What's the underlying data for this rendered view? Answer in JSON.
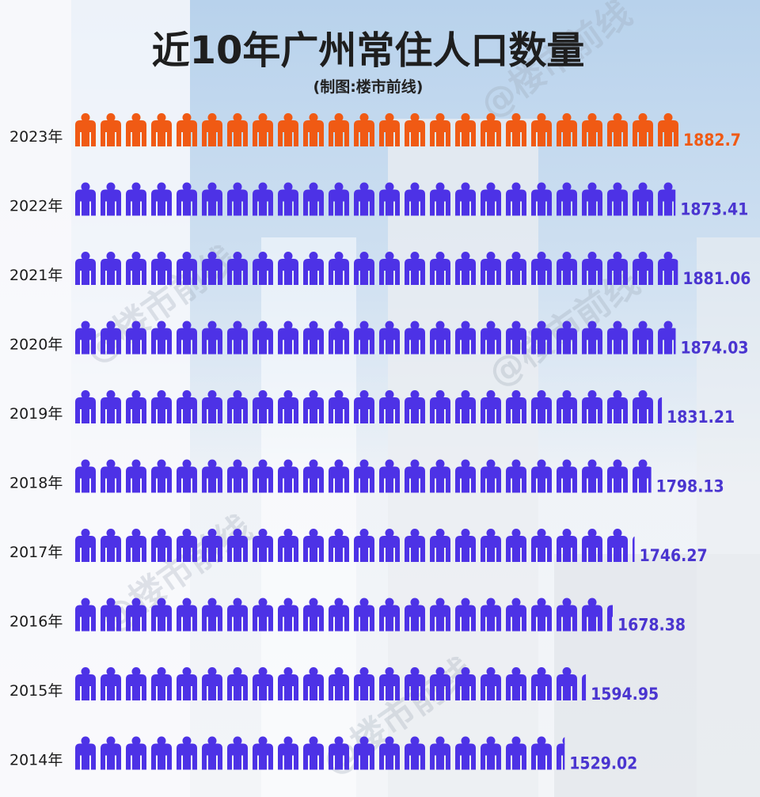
{
  "header": {
    "title": "近10年广州常住人口数量",
    "subtitle": "(制图:楼市前线)"
  },
  "watermark": "@楼市前线",
  "colors": {
    "highlight": "#f05a14",
    "normal": "#4d32e6",
    "value_normal": "#4a35d0"
  },
  "chart_data": {
    "type": "bar",
    "style": "pictogram",
    "icon": "person-icon",
    "title": "近10年广州常住人口数量",
    "xlabel": "",
    "ylabel": "",
    "xlim": [
      0,
      1882.7
    ],
    "categories": [
      "2023年",
      "2022年",
      "2021年",
      "2020年",
      "2019年",
      "2018年",
      "2017年",
      "2016年",
      "2015年",
      "2014年"
    ],
    "values": [
      1882.7,
      1873.41,
      1881.06,
      1874.03,
      1831.21,
      1798.13,
      1746.27,
      1678.38,
      1594.95,
      1529.02
    ],
    "value_labels": [
      "1882.7",
      "1873.41",
      "1881.06",
      "1874.03",
      "1831.21",
      "1798.13",
      "1746.27",
      "1678.38",
      "1594.95",
      "1529.02"
    ],
    "highlight_index": 0
  }
}
